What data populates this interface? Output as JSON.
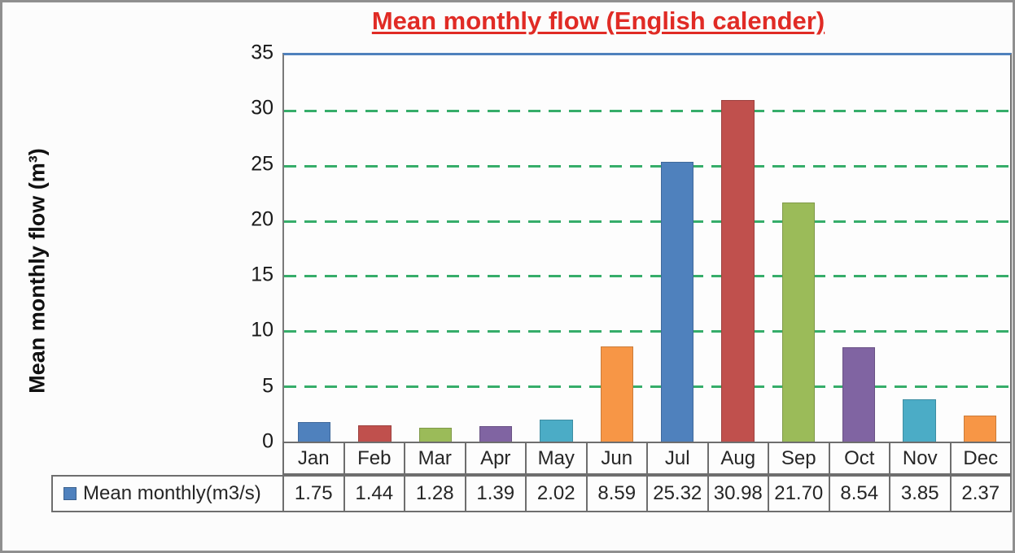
{
  "title": "Mean monthly flow (English calender)",
  "y_axis_label": "Mean monthly flow (m³)",
  "legend": {
    "label": "Mean monthly(m3/s)",
    "swatch_color": "#4f81bd"
  },
  "chart_data": {
    "type": "bar",
    "title": "Mean monthly flow (English calender)",
    "xlabel": "",
    "ylabel": "Mean monthly flow (m³)",
    "series_name": "Mean monthly(m3/s)",
    "categories": [
      "Jan",
      "Feb",
      "Mar",
      "Apr",
      "May",
      "Jun",
      "Jul",
      "Aug",
      "Sep",
      "Oct",
      "Nov",
      "Dec"
    ],
    "values": [
      1.75,
      1.44,
      1.28,
      1.39,
      2.02,
      8.59,
      25.32,
      30.98,
      21.7,
      8.54,
      3.85,
      2.37
    ],
    "value_labels": [
      "1.75",
      "1.44",
      "1.28",
      "1.39",
      "2.02",
      "8.59",
      "25.32",
      "30.98",
      "21.70",
      "8.54",
      "3.85",
      "2.37"
    ],
    "ylim": [
      0,
      35
    ],
    "yticks": [
      0,
      5,
      10,
      15,
      20,
      25,
      30,
      35
    ],
    "gridline_values": [
      5,
      10,
      15,
      20,
      25,
      30
    ],
    "grid_style": "dashed",
    "legend_position": "bottom-table",
    "bar_colors": [
      "#4f81bd",
      "#c0504d",
      "#9bbb59",
      "#8064a2",
      "#4bacc6",
      "#f79646",
      "#4f81bd",
      "#c0504d",
      "#9bbb59",
      "#8064a2",
      "#4bacc6",
      "#f79646"
    ],
    "colors": {
      "title_red": "#e02b25",
      "gridline_green": "#36ad6a",
      "plot_top_border_blue": "#4f81bd",
      "axis_gray": "#6e6e6e",
      "text_black": "#191919"
    }
  }
}
